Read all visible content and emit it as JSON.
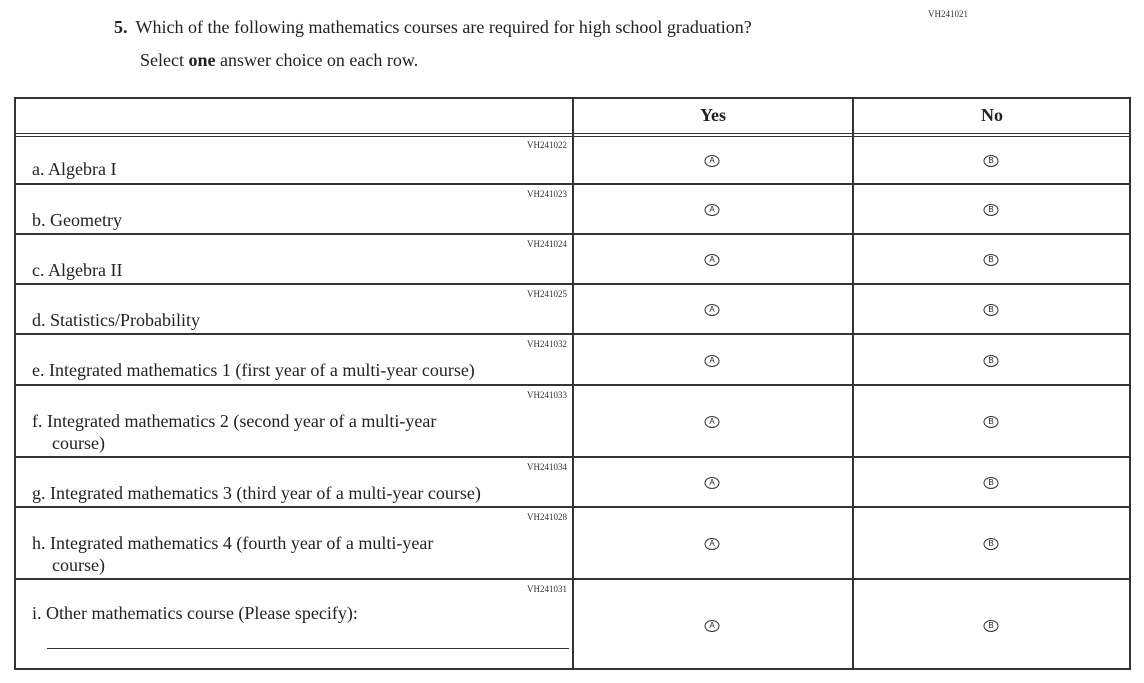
{
  "question_id": "VH241021",
  "question_number": "5.",
  "question_text": "Which of the following mathematics courses are required for high school graduation?",
  "instruction": {
    "pre": "Select ",
    "bold": "one",
    "post": " answer choice on each row."
  },
  "columns": {
    "yes": "Yes",
    "no": "No"
  },
  "bubbles": {
    "yes": "A",
    "no": "B"
  },
  "rows": [
    {
      "code": "VH241022",
      "label": "a.  Algebra I"
    },
    {
      "code": "VH241023",
      "label": "b.  Geometry"
    },
    {
      "code": "VH241024",
      "label": "c.  Algebra II"
    },
    {
      "code": "VH241025",
      "label": "d.  Statistics/Probability"
    },
    {
      "code": "VH241032",
      "label": "e.  Integrated mathematics 1 (first year of a multi-year course)"
    },
    {
      "code": "VH241033",
      "label": "f.  Integrated mathematics 2 (second year of a multi-year",
      "label2": "course)"
    },
    {
      "code": "VH241034",
      "label": "g.  Integrated mathematics 3 (third year of a multi-year course)"
    },
    {
      "code": "VH241028",
      "label": "h.  Integrated mathematics 4 (fourth year of a multi-year",
      "label2": "course)"
    },
    {
      "code": "VH241031",
      "label": "i.  Other mathematics course (Please specify):"
    }
  ]
}
